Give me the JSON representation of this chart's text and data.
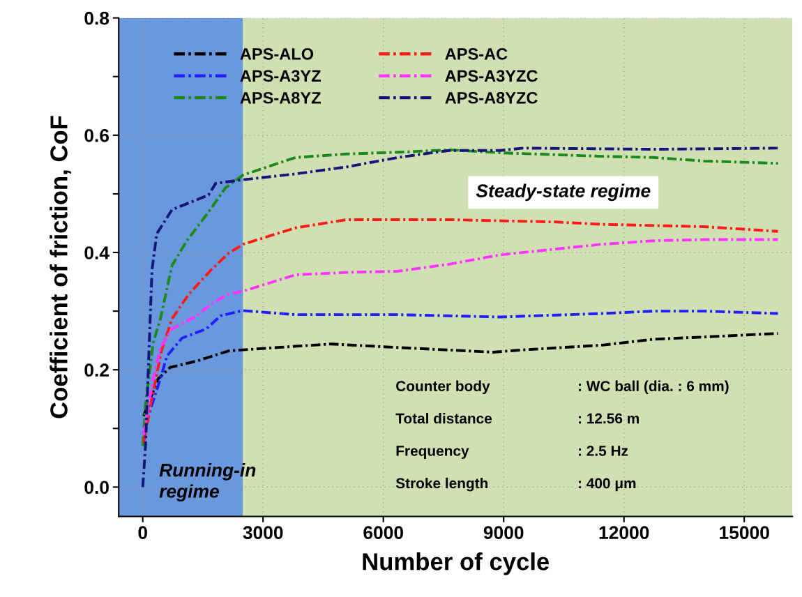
{
  "chart_data": {
    "type": "line",
    "xlabel": "Number of cycle",
    "ylabel": "Coefficient of friction, CoF",
    "xlim": [
      -600,
      16200
    ],
    "ylim": [
      -0.05,
      0.8
    ],
    "xticks": [
      0,
      3000,
      6000,
      9000,
      12000,
      15000
    ],
    "yticks": [
      {
        "value": 0.0,
        "label": "0.0"
      },
      {
        "value": 0.1,
        "label": null
      },
      {
        "value": 0.2,
        "label": "0.2"
      },
      {
        "value": 0.3,
        "label": null
      },
      {
        "value": 0.4,
        "label": "0.4"
      },
      {
        "value": 0.5,
        "label": null
      },
      {
        "value": 0.6,
        "label": "0.6"
      },
      {
        "value": 0.7,
        "label": null
      },
      {
        "value": 0.8,
        "label": "0.8"
      }
    ],
    "grid": true,
    "legend": "top left",
    "line_style": "dashdot",
    "marker": "none",
    "series": [
      {
        "name": "APS-ALO",
        "color": "#000000",
        "x": [
          20,
          380,
          680,
          1350,
          2130,
          2500,
          3570,
          4690,
          6360,
          8740,
          9490,
          11450,
          12730,
          14000,
          15840
        ],
        "values": [
          0.121,
          0.184,
          0.204,
          0.215,
          0.232,
          0.234,
          0.239,
          0.244,
          0.238,
          0.23,
          0.234,
          0.242,
          0.252,
          0.256,
          0.262
        ]
      },
      {
        "name": "APS-A3YZ",
        "color": "#1f1fff",
        "x": [
          20,
          140,
          380,
          610,
          980,
          1590,
          1940,
          2480,
          3810,
          6360,
          8920,
          11450,
          12730,
          14000,
          15840
        ],
        "values": [
          0.076,
          0.121,
          0.172,
          0.224,
          0.254,
          0.27,
          0.292,
          0.301,
          0.294,
          0.294,
          0.29,
          0.296,
          0.3,
          0.3,
          0.296
        ]
      },
      {
        "name": "APS-A8YZ",
        "color": "#1a8a1a",
        "x": [
          0,
          70,
          260,
          440,
          730,
          1100,
          1640,
          2060,
          2500,
          3810,
          5090,
          6360,
          7640,
          8920,
          11450,
          12730,
          14000,
          15840
        ],
        "values": [
          0.07,
          0.141,
          0.246,
          0.287,
          0.378,
          0.42,
          0.469,
          0.51,
          0.532,
          0.562,
          0.568,
          0.571,
          0.575,
          0.57,
          0.564,
          0.562,
          0.556,
          0.552
        ]
      },
      {
        "name": "APS-AC",
        "color": "#ff1a1a",
        "x": [
          20,
          260,
          470,
          730,
          1150,
          1700,
          2130,
          2500,
          3810,
          5090,
          7640,
          10310,
          11450,
          14000,
          15840
        ],
        "values": [
          0.076,
          0.163,
          0.233,
          0.287,
          0.329,
          0.37,
          0.398,
          0.414,
          0.442,
          0.456,
          0.456,
          0.452,
          0.448,
          0.444,
          0.436
        ]
      },
      {
        "name": "APS-A3YZC",
        "color": "#ff33ff",
        "x": [
          20,
          260,
          440,
          730,
          1350,
          1700,
          2130,
          2500,
          3810,
          5090,
          6360,
          7640,
          8920,
          10310,
          11450,
          12730,
          14000,
          15840
        ],
        "values": [
          0.089,
          0.184,
          0.238,
          0.27,
          0.292,
          0.312,
          0.329,
          0.334,
          0.362,
          0.366,
          0.368,
          0.38,
          0.396,
          0.406,
          0.414,
          0.42,
          0.422,
          0.422
        ]
      },
      {
        "name": "APS-A8YZC",
        "color": "#14147a",
        "x": [
          0,
          70,
          140,
          230,
          350,
          730,
          1640,
          1820,
          2500,
          3810,
          5090,
          6360,
          7640,
          8920,
          9490,
          12730,
          15840
        ],
        "values": [
          0.0,
          0.072,
          0.204,
          0.37,
          0.432,
          0.473,
          0.498,
          0.518,
          0.524,
          0.534,
          0.546,
          0.562,
          0.574,
          0.574,
          0.578,
          0.576,
          0.578
        ]
      }
    ],
    "bands": [
      {
        "axis": "x",
        "from": -600,
        "to": 2500,
        "label": "Running-in\nregime",
        "color": "#4f86d6"
      },
      {
        "axis": "x",
        "from": 2500,
        "to": 16200,
        "label": "Steady-state regime",
        "color": "#c9dba6"
      }
    ],
    "annotations": [
      "Counter body",
      ": WC ball (dia. : 6 mm)",
      "Total distance",
      ": 12.56 m",
      "Frequency",
      ": 2.5 Hz",
      "Stroke length",
      ": 400 μm"
    ]
  }
}
